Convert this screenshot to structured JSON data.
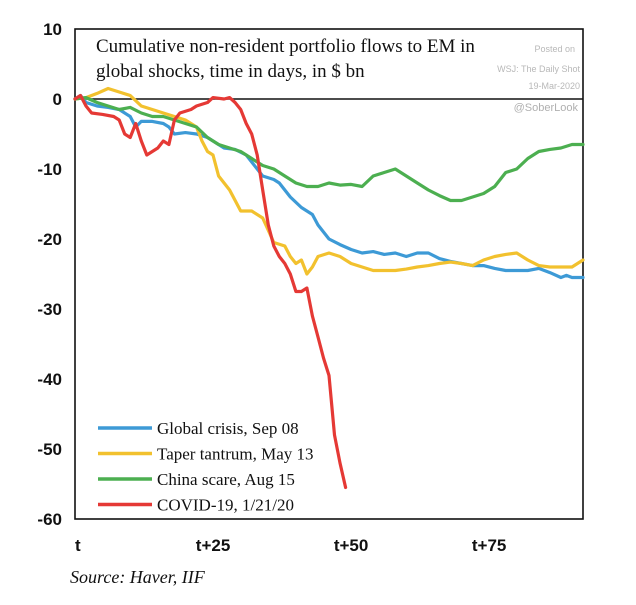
{
  "chart_data": {
    "type": "line",
    "title_lines": [
      "Cumulative non-resident portfolio flows to EM in",
      "global shocks, time in days, in $ bn"
    ],
    "watermark": {
      "line1": "Posted on",
      "line2": "WSJ: The Daily Shot",
      "line3": "19-Mar-2020"
    },
    "handle": "@SoberLook",
    "source": "Source: Haver, IIF",
    "xlim": [
      0,
      92
    ],
    "ylim": [
      -60,
      10
    ],
    "x_ticks": [
      {
        "value": 0,
        "label": "t"
      },
      {
        "value": 25,
        "label": "t+25"
      },
      {
        "value": 50,
        "label": "t+50"
      },
      {
        "value": 75,
        "label": "t+75"
      }
    ],
    "y_ticks": [
      {
        "value": 10,
        "label": "10"
      },
      {
        "value": 0,
        "label": "0"
      },
      {
        "value": -10,
        "label": "-10"
      },
      {
        "value": -20,
        "label": "-20"
      },
      {
        "value": -30,
        "label": "-30"
      },
      {
        "value": -40,
        "label": "-40"
      },
      {
        "value": -50,
        "label": "-50"
      },
      {
        "value": -60,
        "label": "-60"
      }
    ],
    "zero_line": true,
    "legend_position": "bottom-left",
    "series": [
      {
        "name": "Global crisis, Sep 08",
        "color": "#3d9ad6",
        "points": [
          [
            0,
            0
          ],
          [
            1,
            0.5
          ],
          [
            2,
            -0.5
          ],
          [
            4,
            -1
          ],
          [
            6,
            -1.2
          ],
          [
            8,
            -1.5
          ],
          [
            10,
            -2.5
          ],
          [
            11,
            -4
          ],
          [
            12,
            -3.2
          ],
          [
            14,
            -3.2
          ],
          [
            16,
            -3.5
          ],
          [
            17,
            -4
          ],
          [
            18,
            -5
          ],
          [
            20,
            -4.8
          ],
          [
            22,
            -5
          ],
          [
            24,
            -5.5
          ],
          [
            25,
            -6
          ],
          [
            27,
            -7
          ],
          [
            29,
            -7.2
          ],
          [
            31,
            -8
          ],
          [
            32,
            -9
          ],
          [
            34,
            -11
          ],
          [
            36,
            -11.5
          ],
          [
            37,
            -12
          ],
          [
            39,
            -14
          ],
          [
            41,
            -15.5
          ],
          [
            43,
            -16.5
          ],
          [
            44,
            -18
          ],
          [
            46,
            -20
          ],
          [
            48,
            -20.8
          ],
          [
            50,
            -21.5
          ],
          [
            52,
            -22
          ],
          [
            54,
            -21.8
          ],
          [
            56,
            -22.2
          ],
          [
            58,
            -22
          ],
          [
            60,
            -22.5
          ],
          [
            62,
            -22
          ],
          [
            64,
            -22
          ],
          [
            66,
            -22.8
          ],
          [
            68,
            -23.2
          ],
          [
            70,
            -23.5
          ],
          [
            72,
            -23.8
          ],
          [
            74,
            -23.8
          ],
          [
            76,
            -24.2
          ],
          [
            78,
            -24.5
          ],
          [
            80,
            -24.5
          ],
          [
            82,
            -24.5
          ],
          [
            84,
            -24.2
          ],
          [
            86,
            -24.8
          ],
          [
            88,
            -25.5
          ],
          [
            89,
            -25.2
          ],
          [
            90,
            -25.5
          ],
          [
            92,
            -25.5
          ]
        ]
      },
      {
        "name": "Taper tantrum, May 13",
        "color": "#f2c12e",
        "points": [
          [
            0,
            0
          ],
          [
            2,
            0.2
          ],
          [
            4,
            0.8
          ],
          [
            6,
            1.5
          ],
          [
            8,
            1
          ],
          [
            10,
            0.5
          ],
          [
            12,
            -1
          ],
          [
            14,
            -1.5
          ],
          [
            16,
            -2
          ],
          [
            18,
            -2.5
          ],
          [
            20,
            -3
          ],
          [
            22,
            -4
          ],
          [
            23,
            -6
          ],
          [
            24,
            -7.5
          ],
          [
            25,
            -8
          ],
          [
            26,
            -11
          ],
          [
            28,
            -13
          ],
          [
            30,
            -16
          ],
          [
            32,
            -16
          ],
          [
            34,
            -17
          ],
          [
            36,
            -20.5
          ],
          [
            38,
            -21
          ],
          [
            39,
            -22.5
          ],
          [
            40,
            -23.5
          ],
          [
            41,
            -23
          ],
          [
            42,
            -25
          ],
          [
            43,
            -24
          ],
          [
            44,
            -22.5
          ],
          [
            46,
            -22
          ],
          [
            48,
            -22.5
          ],
          [
            50,
            -23.5
          ],
          [
            52,
            -24
          ],
          [
            54,
            -24.5
          ],
          [
            56,
            -24.5
          ],
          [
            58,
            -24.5
          ],
          [
            60,
            -24.3
          ],
          [
            62,
            -24
          ],
          [
            64,
            -23.8
          ],
          [
            66,
            -23.5
          ],
          [
            68,
            -23.3
          ],
          [
            70,
            -23.5
          ],
          [
            72,
            -23.8
          ],
          [
            74,
            -23
          ],
          [
            76,
            -22.5
          ],
          [
            78,
            -22.2
          ],
          [
            80,
            -22
          ],
          [
            82,
            -23
          ],
          [
            84,
            -23.8
          ],
          [
            86,
            -24
          ],
          [
            88,
            -24
          ],
          [
            90,
            -24
          ],
          [
            92,
            -23
          ]
        ]
      },
      {
        "name": "China scare, Aug 15",
        "color": "#4caf50",
        "points": [
          [
            0,
            0
          ],
          [
            2,
            0.2
          ],
          [
            4,
            -0.5
          ],
          [
            6,
            -1
          ],
          [
            8,
            -1.5
          ],
          [
            10,
            -1.2
          ],
          [
            12,
            -2
          ],
          [
            14,
            -2.5
          ],
          [
            16,
            -2.5
          ],
          [
            18,
            -3
          ],
          [
            20,
            -3.5
          ],
          [
            22,
            -4
          ],
          [
            24,
            -5.5
          ],
          [
            26,
            -6.5
          ],
          [
            28,
            -7
          ],
          [
            30,
            -7.5
          ],
          [
            32,
            -8.5
          ],
          [
            34,
            -9.5
          ],
          [
            36,
            -10
          ],
          [
            38,
            -11
          ],
          [
            40,
            -12
          ],
          [
            42,
            -12.5
          ],
          [
            44,
            -12.5
          ],
          [
            46,
            -12
          ],
          [
            48,
            -12.3
          ],
          [
            50,
            -12.2
          ],
          [
            52,
            -12.5
          ],
          [
            54,
            -11
          ],
          [
            56,
            -10.5
          ],
          [
            58,
            -10
          ],
          [
            60,
            -11
          ],
          [
            62,
            -12
          ],
          [
            64,
            -13
          ],
          [
            66,
            -13.8
          ],
          [
            68,
            -14.5
          ],
          [
            70,
            -14.5
          ],
          [
            72,
            -14
          ],
          [
            74,
            -13.5
          ],
          [
            76,
            -12.5
          ],
          [
            78,
            -10.5
          ],
          [
            80,
            -10
          ],
          [
            82,
            -8.5
          ],
          [
            84,
            -7.5
          ],
          [
            86,
            -7.2
          ],
          [
            88,
            -7
          ],
          [
            90,
            -6.5
          ],
          [
            92,
            -6.5
          ]
        ]
      },
      {
        "name": "COVID-19, 1/21/20",
        "color": "#e53935",
        "points": [
          [
            0,
            0
          ],
          [
            1,
            0.5
          ],
          [
            2,
            -1
          ],
          [
            3,
            -2
          ],
          [
            5,
            -2.2
          ],
          [
            7,
            -2.5
          ],
          [
            8,
            -3
          ],
          [
            9,
            -5
          ],
          [
            10,
            -5.5
          ],
          [
            11,
            -3.5
          ],
          [
            12,
            -6
          ],
          [
            13,
            -8
          ],
          [
            15,
            -7
          ],
          [
            16,
            -6
          ],
          [
            17,
            -6.5
          ],
          [
            18,
            -3
          ],
          [
            19,
            -2
          ],
          [
            21,
            -1.5
          ],
          [
            22,
            -1
          ],
          [
            24,
            -0.5
          ],
          [
            25,
            0.2
          ],
          [
            27,
            0
          ],
          [
            28,
            0.2
          ],
          [
            29,
            -0.5
          ],
          [
            30,
            -1.5
          ],
          [
            31,
            -3.5
          ],
          [
            32,
            -5
          ],
          [
            33,
            -8
          ],
          [
            34,
            -13
          ],
          [
            35,
            -18
          ],
          [
            36,
            -21
          ],
          [
            37,
            -22.5
          ],
          [
            38,
            -23.5
          ],
          [
            39,
            -25
          ],
          [
            40,
            -27.5
          ],
          [
            41,
            -27.5
          ],
          [
            42,
            -27
          ],
          [
            43,
            -31
          ],
          [
            44,
            -34
          ],
          [
            45,
            -37
          ],
          [
            46,
            -39.5
          ],
          [
            47,
            -48
          ],
          [
            48,
            -52
          ],
          [
            49,
            -55.5
          ]
        ]
      }
    ]
  }
}
